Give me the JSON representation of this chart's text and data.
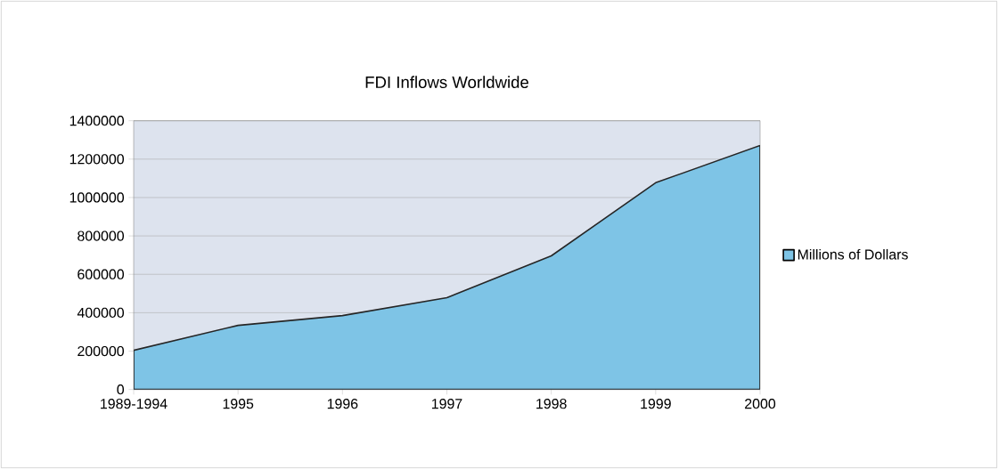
{
  "chart_data": {
    "type": "area",
    "title": "FDI Inflows Worldwide",
    "categories": [
      "1989-1994",
      "1995",
      "1996",
      "1997",
      "1998",
      "1999",
      "2000"
    ],
    "series": [
      {
        "name": "Millions of Dollars",
        "color": "#7ec4e6",
        "values": [
          204000,
          334000,
          385000,
          478000,
          696000,
          1077000,
          1271000
        ]
      }
    ],
    "ylim": [
      0,
      1400000
    ],
    "yticks": [
      0,
      200000,
      400000,
      600000,
      800000,
      1000000,
      1200000,
      1400000
    ],
    "grid": "y",
    "legend": "right"
  }
}
